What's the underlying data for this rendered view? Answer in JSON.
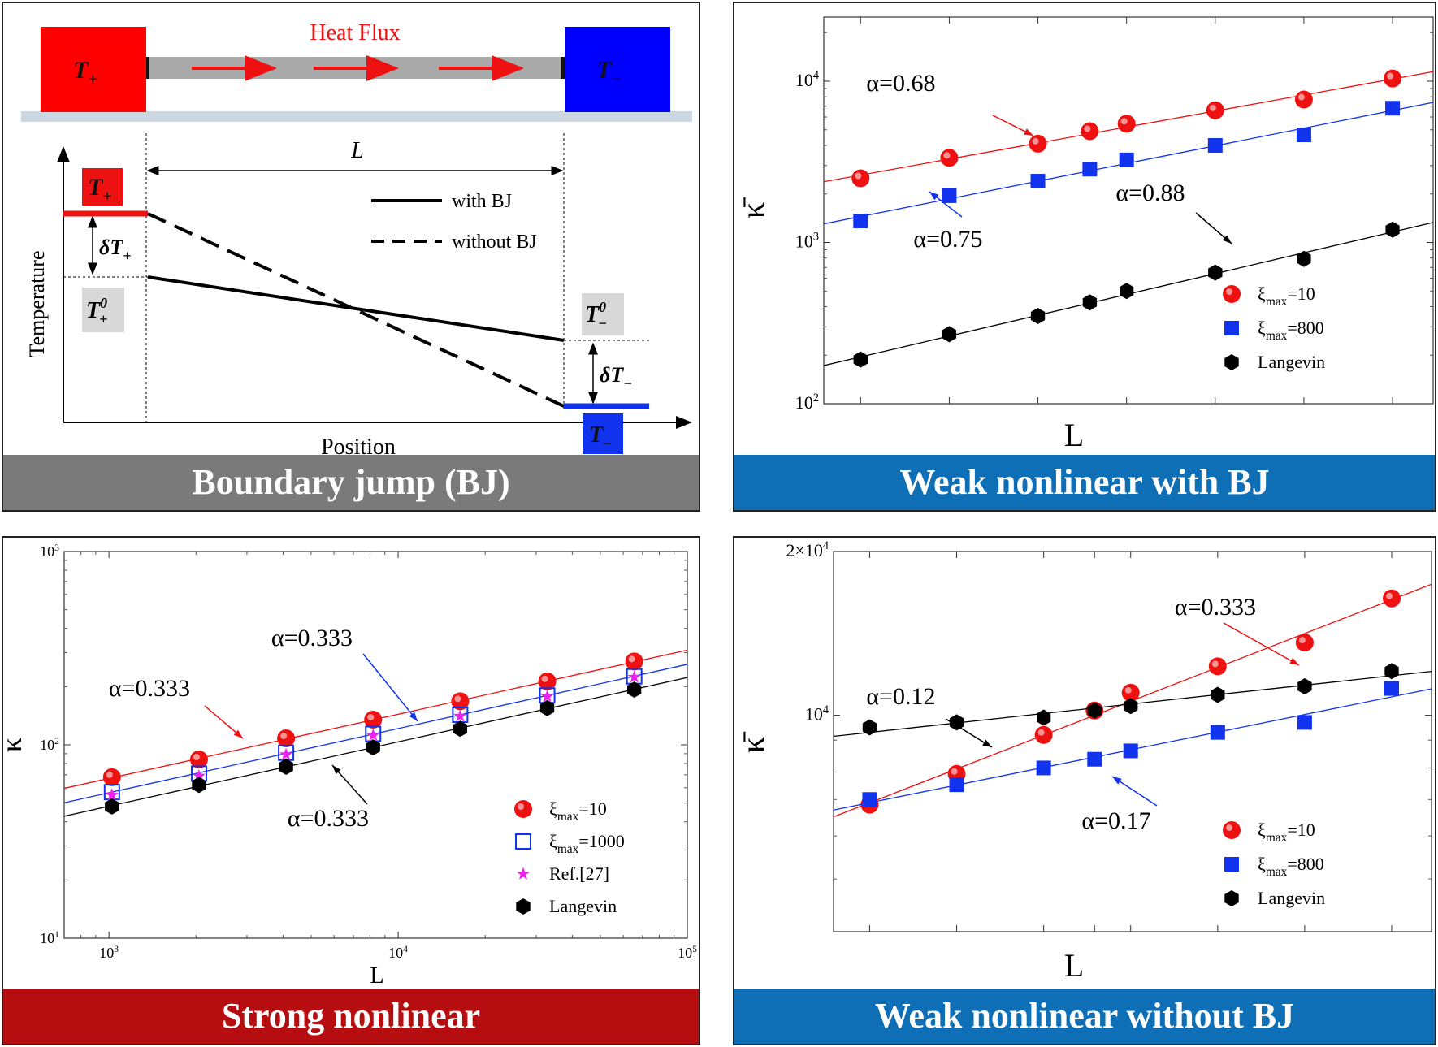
{
  "colors": {
    "red": "#ee1111",
    "blue": "#1133ee",
    "black": "#000000",
    "magenta": "#ee22ee",
    "banner_gray": "#7a7a7a",
    "banner_blue": "#0e6fb7",
    "banner_red": "#b50d10"
  },
  "panel1": {
    "banner": "Boundary jump (BJ)",
    "heat_flux": "Heat Flux",
    "t_plus_main": "T",
    "t_plus_sub": "+",
    "t_minus_main": "T",
    "t_minus_sub": "−",
    "l_label": "L",
    "legend_solid": "with BJ",
    "legend_dashed": "without BJ",
    "delta_plus": "δT",
    "delta_plus_sub": "+",
    "delta_minus": "δT",
    "delta_minus_sub": "−",
    "t0_plus": "T",
    "t0_plus_sup": "0",
    "t0_plus_sub": "+",
    "t0_minus": "T",
    "t0_minus_sup": "0",
    "t0_minus_sub": "−",
    "ylabel": "Temperature",
    "xlabel": "Position"
  },
  "panel2": {
    "banner": "Weak nonlinear with BJ"
  },
  "panel3": {
    "banner": "Strong nonlinear"
  },
  "panel4": {
    "banner": "Weak nonlinear without BJ"
  },
  "chart_data": [
    {
      "panel": "panel2",
      "type": "scatter",
      "title": "",
      "xlabel": "L",
      "ylabel": "κ̄",
      "y_log": true,
      "ylim": [
        100,
        25000
      ],
      "yticks": [
        {
          "v": 100,
          "base": "10",
          "exp": "2"
        },
        {
          "v": 1000,
          "base": "10",
          "exp": "3"
        },
        {
          "v": 10000,
          "base": "10",
          "exp": "4"
        }
      ],
      "xlim": [
        768,
        90000
      ],
      "x_tick_labels": false,
      "x_log": true,
      "xticks_minor": [
        1024,
        2048,
        4096,
        8192,
        16384,
        32768,
        65536
      ],
      "series": [
        {
          "name": "ξ_max=10",
          "name_main": "ξ",
          "name_sub": "max",
          "name_tail": "=10",
          "marker": "sphere",
          "color": "#ee1111",
          "x": [
            1024,
            2048,
            4096,
            6144,
            8192,
            16384,
            32768,
            65536
          ],
          "y": [
            2500,
            3350,
            4100,
            4900,
            5450,
            6600,
            7700,
            10400
          ],
          "fit": {
            "alpha_text": "α=0.68",
            "x0": 768,
            "x1": 90000
          }
        },
        {
          "name": "ξ_max=800",
          "name_main": "ξ",
          "name_sub": "max",
          "name_tail": "=800",
          "marker": "square",
          "color": "#1133ee",
          "x": [
            1024,
            2048,
            4096,
            6144,
            8192,
            16384,
            32768,
            65536
          ],
          "y": [
            1360,
            1950,
            2400,
            2850,
            3250,
            4000,
            4650,
            6800
          ],
          "fit": {
            "alpha_text": "α=0.75",
            "x0": 768,
            "x1": 90000
          }
        },
        {
          "name": "Langevin",
          "marker": "hexagon",
          "color": "#000000",
          "x": [
            1024,
            2048,
            4096,
            6144,
            8192,
            16384,
            32768,
            65536
          ],
          "y": [
            188,
            270,
            350,
            425,
            500,
            650,
            790,
            1200
          ],
          "fit": {
            "alpha_text": "α=0.88",
            "x0": 768,
            "x1": 90000
          }
        }
      ],
      "legend_position": "bottom-right"
    },
    {
      "panel": "panel3",
      "type": "scatter",
      "title": "",
      "xlabel": "L",
      "ylabel": "κ",
      "x_log": true,
      "y_log": true,
      "xlim": [
        700,
        100000
      ],
      "ylim": [
        10,
        1000
      ],
      "xticks": [
        {
          "v": 1000,
          "base": "10",
          "exp": "3"
        },
        {
          "v": 10000,
          "base": "10",
          "exp": "4"
        },
        {
          "v": 100000,
          "base": "10",
          "exp": "5"
        }
      ],
      "yticks": [
        {
          "v": 10,
          "base": "10",
          "exp": "1"
        },
        {
          "v": 100,
          "base": "10",
          "exp": "2"
        },
        {
          "v": 1000,
          "base": "10",
          "exp": "3"
        }
      ],
      "series": [
        {
          "name": "ξ_max=10",
          "name_main": "ξ",
          "name_sub": "max",
          "name_tail": "=10",
          "marker": "sphere",
          "color": "#ee1111",
          "x": [
            1024,
            2048,
            4096,
            8192,
            16384,
            32768,
            65536
          ],
          "y": [
            68,
            84,
            108,
            135,
            168,
            213,
            270
          ],
          "fit": {
            "alpha_text": "α=0.333",
            "x0": 700,
            "x1": 100000
          }
        },
        {
          "name": "ξ_max=1000",
          "name_main": "ξ",
          "name_sub": "max",
          "name_tail": "=1000",
          "marker": "open-square",
          "color": "#1133ee",
          "x": [
            1024,
            2048,
            4096,
            8192,
            16384,
            32768,
            65536
          ],
          "y": [
            57,
            71,
            91,
            114,
            143,
            180,
            226
          ],
          "fit": {
            "alpha_text": "α=0.333",
            "x0": 700,
            "x1": 100000
          }
        },
        {
          "name": "Ref.[27]",
          "marker": "star",
          "color": "#ee22ee",
          "x": [
            1024,
            2048,
            4096,
            8192,
            16384,
            32768,
            65536
          ],
          "y": [
            55,
            69,
            89,
            112,
            141,
            178,
            224
          ]
        },
        {
          "name": "Langevin",
          "marker": "hexagon",
          "color": "#000000",
          "x": [
            1024,
            2048,
            4096,
            8192,
            16384,
            32768,
            65536
          ],
          "y": [
            48,
            62,
            77,
            97,
            121,
            155,
            193
          ],
          "fit": {
            "alpha_text": "α=0.333",
            "x0": 700,
            "x1": 100000
          }
        }
      ],
      "legend_position": "bottom-right"
    },
    {
      "panel": "panel4",
      "type": "scatter",
      "title": "",
      "xlabel": "L",
      "ylabel": "κ̄",
      "x_log": true,
      "y_log": true,
      "xlim": [
        768,
        90000
      ],
      "ylim": [
        4000,
        20000
      ],
      "yticks": [
        {
          "v": 10000,
          "text": "10",
          "exp": "4"
        },
        {
          "v": 20000,
          "text": "2×10",
          "exp": "4"
        }
      ],
      "x_tick_labels": false,
      "xticks_minor": [
        1024,
        2048,
        4096,
        6144,
        8192,
        16384,
        32768,
        65536
      ],
      "series": [
        {
          "name": "ξ_max=10",
          "name_main": "ξ",
          "name_sub": "max",
          "name_tail": "=10",
          "marker": "sphere",
          "color": "#ee1111",
          "x": [
            1024,
            2048,
            4096,
            6144,
            8192,
            16384,
            32768,
            65536
          ],
          "y": [
            6850,
            7800,
            9200,
            10200,
            11000,
            12300,
            13600,
            16400
          ],
          "fit": {
            "alpha_text": "α=0.333",
            "x0": 768,
            "x1": 90000
          }
        },
        {
          "name": "ξ_max=800",
          "name_main": "ξ",
          "name_sub": "max",
          "name_tail": "=800",
          "marker": "square",
          "color": "#1133ee",
          "x": [
            1024,
            2048,
            4096,
            6144,
            8192,
            16384,
            32768,
            65536
          ],
          "y": [
            7000,
            7450,
            8000,
            8300,
            8600,
            9300,
            9700,
            11200
          ],
          "fit": {
            "alpha_text": "α=0.17",
            "x0": 768,
            "x1": 90000
          }
        },
        {
          "name": "Langevin",
          "marker": "hexagon",
          "color": "#000000",
          "x": [
            1024,
            2048,
            4096,
            6144,
            8192,
            16384,
            32768,
            65536
          ],
          "y": [
            9500,
            9700,
            9900,
            10200,
            10400,
            10900,
            11300,
            12050
          ],
          "fit": {
            "alpha_text": "α=0.12",
            "x0": 768,
            "x1": 90000
          }
        }
      ],
      "legend_position": "bottom-right"
    }
  ]
}
